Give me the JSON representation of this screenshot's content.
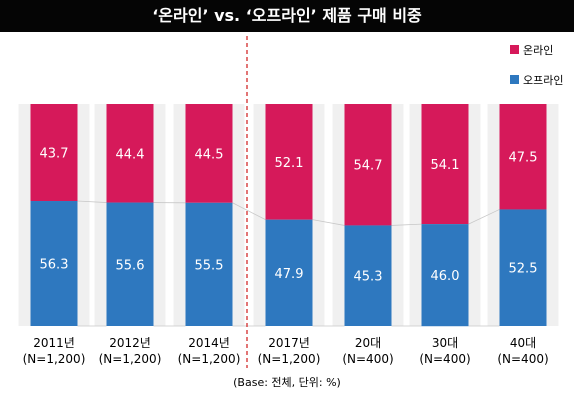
{
  "page": {
    "title": "‘온라인’ vs. ‘오프라인’ 제품 구매 비중",
    "footnote": "(Base: 전체, 단위: %)"
  },
  "colors": {
    "online": "#d6195a",
    "offline": "#2e78bf",
    "panel": "#f0f0f0",
    "divider": "#d63a3a",
    "title_bg": "#050505"
  },
  "chart_data": {
    "type": "bar",
    "stacked": true,
    "categories": [
      "2011년",
      "2012년",
      "2014년",
      "2017년",
      "20대",
      "30대",
      "40대"
    ],
    "category_bases": [
      "(N=1,200)",
      "(N=1,200)",
      "(N=1,200)",
      "(N=1,200)",
      "(N=400)",
      "(N=400)",
      "(N=400)"
    ],
    "series": [
      {
        "name": "온라인",
        "values": [
          43.7,
          44.4,
          44.5,
          52.1,
          54.7,
          54.1,
          47.5
        ]
      },
      {
        "name": "오프라인",
        "values": [
          56.3,
          55.6,
          55.5,
          47.9,
          45.3,
          46.0,
          52.5
        ]
      }
    ],
    "value_labels": [
      [
        "43.7",
        "44.4",
        "44.5",
        "52.1",
        "54.7",
        "54.1",
        "47.5"
      ],
      [
        "56.3",
        "55.6",
        "55.5",
        "47.9",
        "45.3",
        "46.0",
        "52.5"
      ]
    ],
    "ylim": [
      0,
      100
    ],
    "legend_position": "top-right",
    "grid": false
  }
}
